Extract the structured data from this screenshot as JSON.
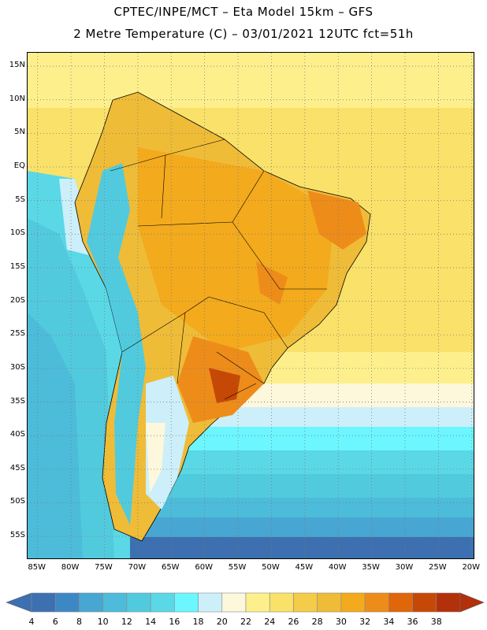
{
  "header": {
    "title_line1": "CPTEC/INPE/MCT –  Eta Model 15km – GFS",
    "title_line2": "2 Metre Temperature (C) – 03/01/2021 12UTC fct=51h"
  },
  "map": {
    "region": "South America",
    "variable": "2 Metre Temperature",
    "units": "C",
    "lat_labels": [
      "15N",
      "10N",
      "5N",
      "EQ",
      "5S",
      "10S",
      "15S",
      "20S",
      "25S",
      "30S",
      "35S",
      "40S",
      "45S",
      "50S",
      "55S"
    ],
    "lon_labels": [
      "85W",
      "80W",
      "75W",
      "70W",
      "65W",
      "60W",
      "55W",
      "50W",
      "45W",
      "40W",
      "35W",
      "30W",
      "25W",
      "20W"
    ],
    "lat_values": [
      15,
      10,
      5,
      0,
      -5,
      -10,
      -15,
      -20,
      -25,
      -30,
      -35,
      -40,
      -45,
      -50,
      -55
    ],
    "lon_values": [
      -85,
      -80,
      -75,
      -70,
      -65,
      -60,
      -55,
      -50,
      -45,
      -40,
      -35,
      -30,
      -25,
      -20
    ]
  },
  "colorbar": {
    "labels": [
      "4",
      "6",
      "8",
      "10",
      "12",
      "14",
      "16",
      "18",
      "20",
      "22",
      "24",
      "26",
      "28",
      "30",
      "32",
      "34",
      "36",
      "38"
    ],
    "colors": [
      "#3c70b0",
      "#3c88c4",
      "#48a6d2",
      "#4cbcda",
      "#52cade",
      "#5ad8e6",
      "#6cf6ff",
      "#cceffa",
      "#fdf7dc",
      "#fdf08c",
      "#f9e16a",
      "#f3cc4a",
      "#efbc38",
      "#f3aa1c",
      "#ee8c1a",
      "#e0660a",
      "#c64806",
      "#b2300a"
    ]
  }
}
